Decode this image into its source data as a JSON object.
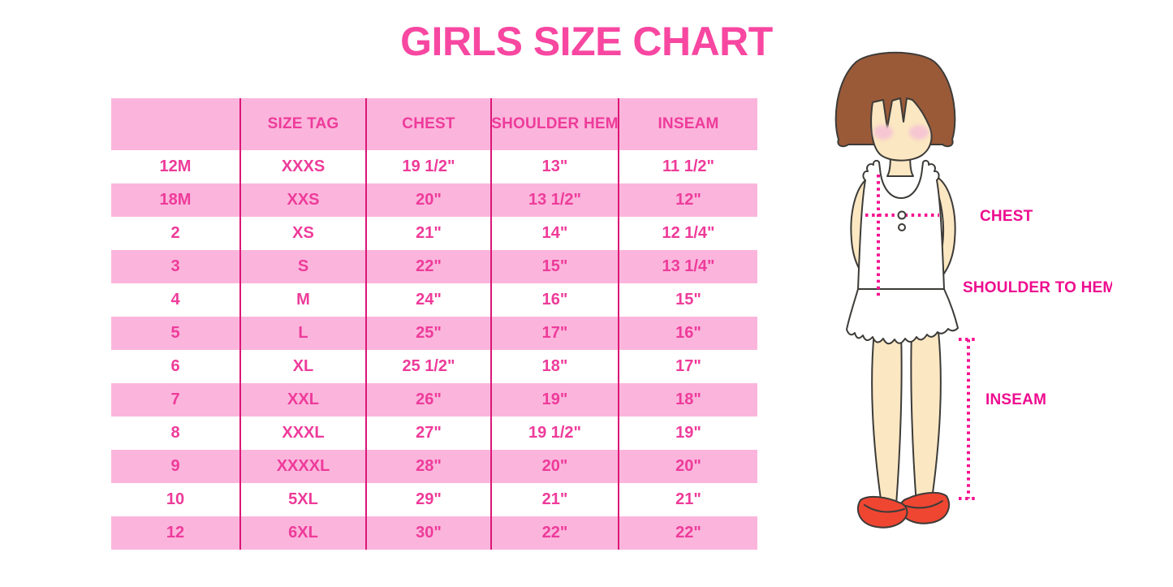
{
  "title": "GIRLS SIZE CHART",
  "chart_data": {
    "type": "table",
    "title": "GIRLS SIZE CHART",
    "columns": [
      "",
      "SIZE TAG",
      "CHEST",
      "SHOULDER HEM",
      "INSEAM"
    ],
    "rows": [
      [
        "12M",
        "XXXS",
        "19 1/2\"",
        "13\"",
        "11 1/2\""
      ],
      [
        "18M",
        "XXS",
        "20\"",
        "13 1/2\"",
        "12\""
      ],
      [
        "2",
        "XS",
        "21\"",
        "14\"",
        "12 1/4\""
      ],
      [
        "3",
        "S",
        "22\"",
        "15\"",
        "13 1/4\""
      ],
      [
        "4",
        "M",
        "24\"",
        "16\"",
        "15\""
      ],
      [
        "5",
        "L",
        "25\"",
        "17\"",
        "16\""
      ],
      [
        "6",
        "XL",
        "25 1/2\"",
        "18\"",
        "17\""
      ],
      [
        "7",
        "XXL",
        "26\"",
        "19\"",
        "18\""
      ],
      [
        "8",
        "XXXL",
        "27\"",
        "19 1/2\"",
        "19\""
      ],
      [
        "9",
        "XXXXL",
        "28\"",
        "20\"",
        "20\""
      ],
      [
        "10",
        "5XL",
        "29\"",
        "21\"",
        "21\""
      ],
      [
        "12",
        "6XL",
        "30\"",
        "22\"",
        "22\""
      ]
    ],
    "row_stripe_pattern": "header pink, then data rows alternate white/pink starting with white"
  },
  "figure": {
    "labels": {
      "chest": "CHEST",
      "shoulder_to_hem": "SHOULDER TO HEM",
      "inseam": "INSEAM"
    }
  },
  "colors": {
    "title_pink": "#F747A1",
    "cell_text": "#EE3B9A",
    "row_pink": "#FBB5DC",
    "divider": "#DB1677",
    "label_magenta": "#EE0C8F",
    "dotted_line": "#F5128F",
    "hair_brown": "#9A5A38",
    "skin": "#FBE7C2",
    "blush": "#F6C7D2",
    "shoe_red": "#EF4632",
    "outline": "#3D3B38"
  }
}
